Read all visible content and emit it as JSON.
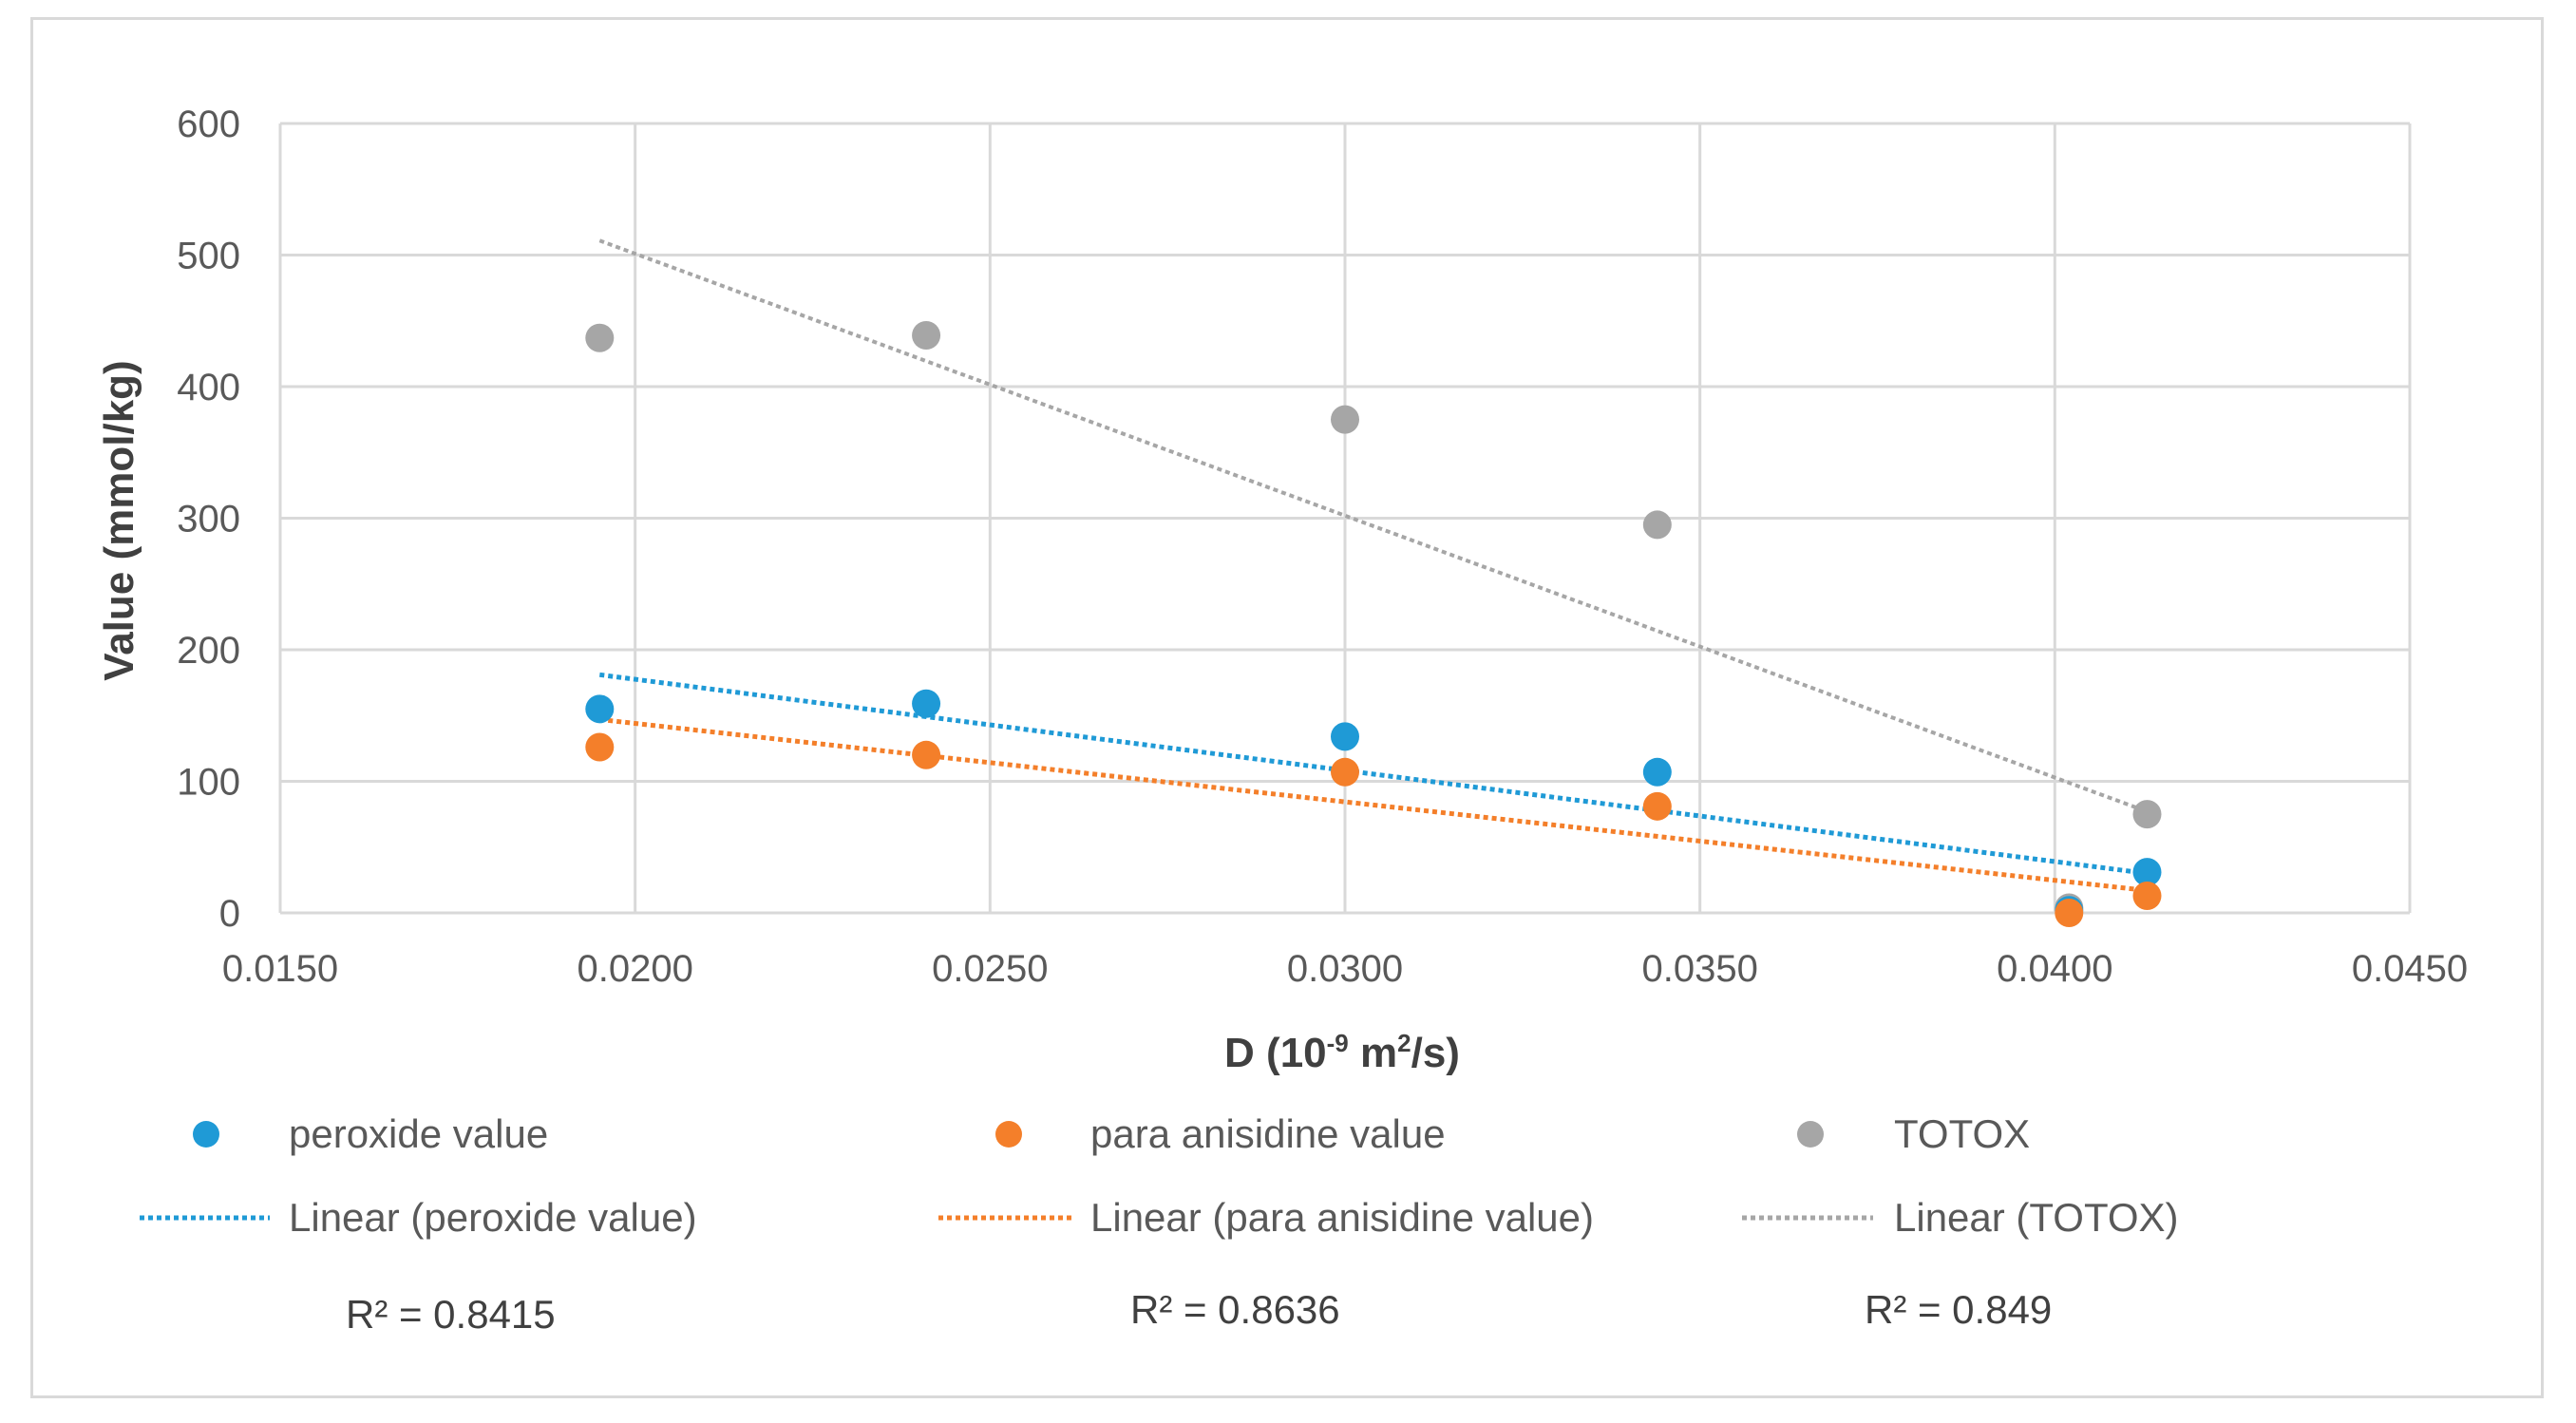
{
  "chart_data": {
    "type": "scatter",
    "title": "",
    "xlabel_main": "D (10",
    "xlabel_exp": "-9",
    "xlabel_mid": " m",
    "xlabel_exp2": "2",
    "xlabel_end": "/s)",
    "ylabel": "Value (mmol/kg)",
    "xlim": [
      0.015,
      0.045
    ],
    "ylim": [
      0,
      600
    ],
    "x_ticks": [
      "0.0150",
      "0.0200",
      "0.0250",
      "0.0300",
      "0.0350",
      "0.0400",
      "0.0450"
    ],
    "y_ticks": [
      "0",
      "100",
      "200",
      "300",
      "400",
      "500",
      "600"
    ],
    "grid": true,
    "series": [
      {
        "name": "peroxide value",
        "color": "#1f9ad6",
        "x": [
          0.0195,
          0.0241,
          0.03,
          0.0344,
          0.0402,
          0.0413
        ],
        "y": [
          155,
          159,
          134,
          107,
          2,
          31
        ],
        "trend_label": "Linear (peroxide value)",
        "trend": {
          "x0": 0.0195,
          "y0": 181,
          "x1": 0.0413,
          "y1": 30
        },
        "r2": "R² = 0.8415"
      },
      {
        "name": "para anisidine value",
        "color": "#f47f2a",
        "x": [
          0.0195,
          0.0241,
          0.03,
          0.0344,
          0.0402,
          0.0413
        ],
        "y": [
          126,
          120,
          107,
          81,
          0,
          13
        ],
        "trend_label": "Linear (para anisidine value)",
        "trend": {
          "x0": 0.0195,
          "y0": 147,
          "x1": 0.0413,
          "y1": 17
        },
        "r2": "R² = 0.8636"
      },
      {
        "name": "TOTOX",
        "color": "#a6a6a6",
        "x": [
          0.0195,
          0.0241,
          0.03,
          0.0344,
          0.0402,
          0.0413
        ],
        "y": [
          437,
          439,
          375,
          295,
          4,
          75
        ],
        "trend_label": "Linear (TOTOX)",
        "trend": {
          "x0": 0.0195,
          "y0": 511,
          "x1": 0.0413,
          "y1": 77
        },
        "r2": "R² = 0.849"
      }
    ],
    "legend_position": "bottom"
  }
}
